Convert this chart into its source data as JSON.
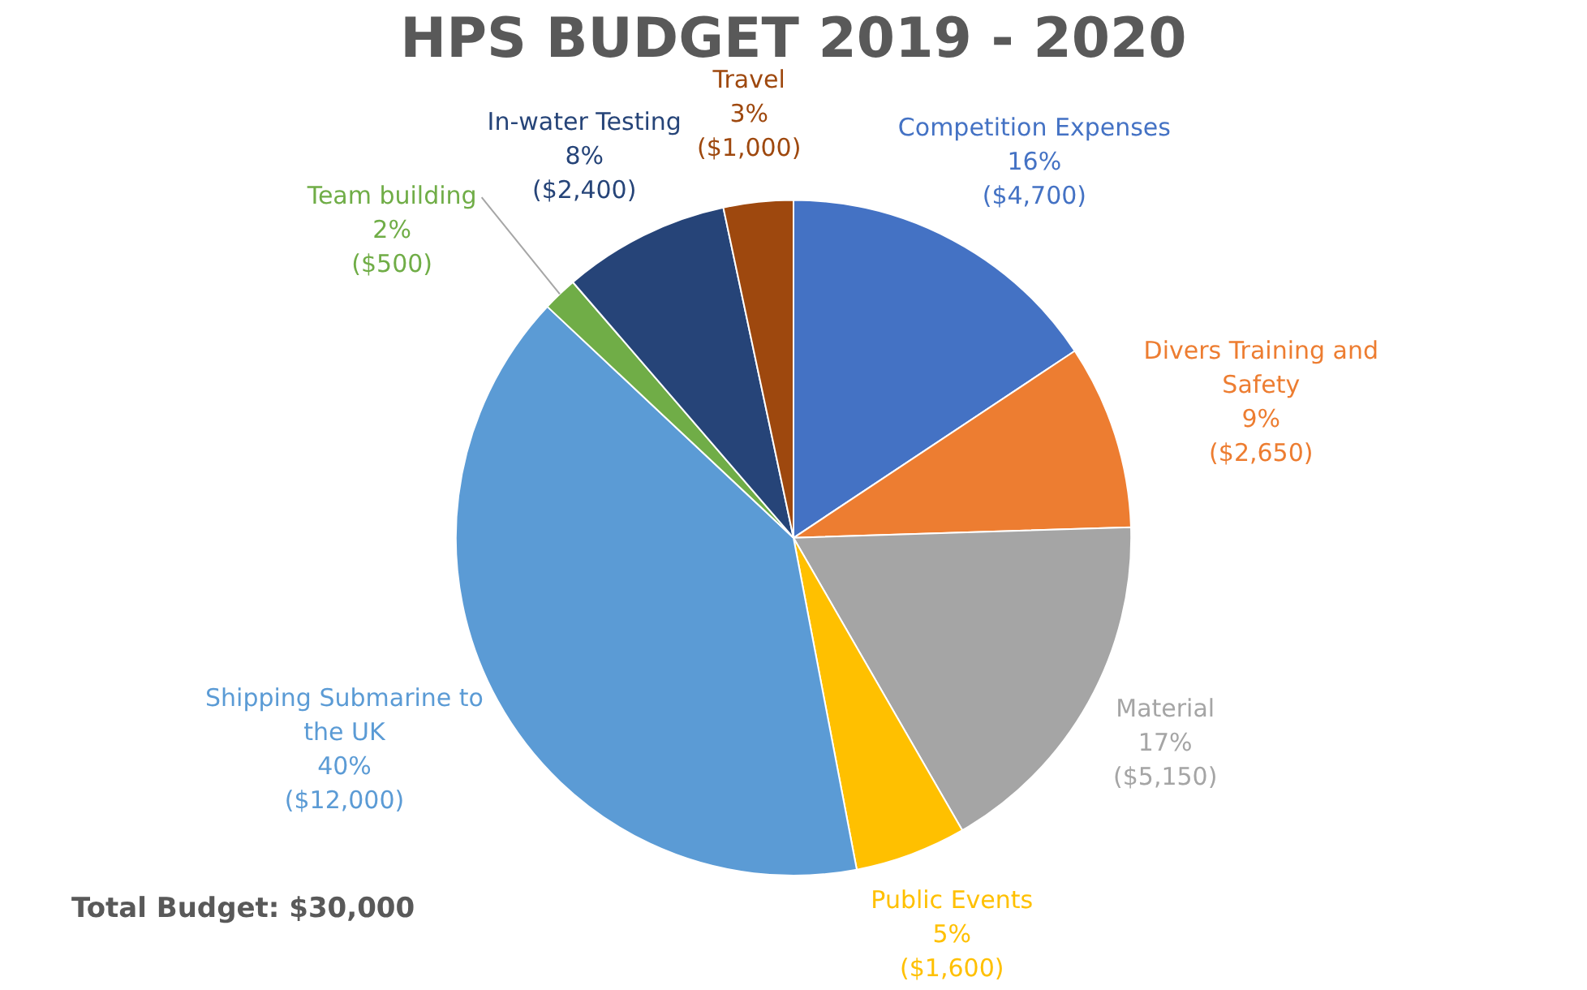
{
  "chart_data": {
    "type": "pie",
    "title": "HPS BUDGET 2019 - 2020",
    "categories": [
      "Competition Expenses",
      "Divers Training and Safety",
      "Material",
      "Public Events",
      "Shipping Submarine to the UK",
      "Team building",
      "In-water Testing",
      "Travel"
    ],
    "values": [
      4700,
      2650,
      5150,
      1600,
      12000,
      500,
      2400,
      1000
    ],
    "colors": [
      "#4472c4",
      "#ed7d31",
      "#a5a5a5",
      "#ffc000",
      "#5b9bd5",
      "#70ad47",
      "#264478",
      "#9e480e"
    ],
    "value_labels": [
      "16%\n($4,700)",
      "9%\n($2,650)",
      "17%\n($5,150)",
      "5%\n($1,600)",
      "40%\n($12,000)",
      "2%\n($500)",
      "8%\n($2,400)",
      "3%\n($1,000)"
    ],
    "annotations": [
      "Total Budget: $30,000"
    ]
  }
}
